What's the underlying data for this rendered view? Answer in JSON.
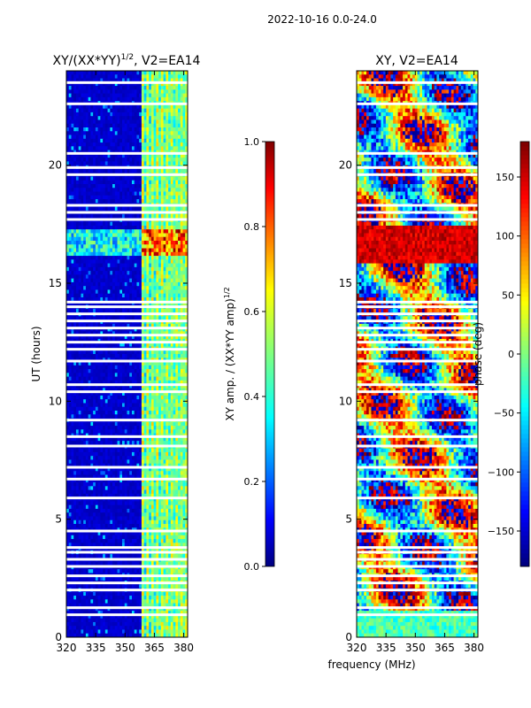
{
  "suptitle": "2022-10-16 0.0-24.0",
  "xlabel_shared": "frequency (MHz)",
  "chart_data": [
    {
      "type": "heatmap",
      "title_prefix": "XY/(XX*YY)",
      "title_sup": "1/2",
      "title_suffix": ", V2=EA14",
      "ylabel": "UT (hours)",
      "xlim": [
        320,
        382
      ],
      "ylim": [
        0,
        24
      ],
      "x_ticks": [
        320,
        335,
        350,
        365,
        380
      ],
      "y_ticks": [
        0,
        5,
        10,
        15,
        20
      ],
      "colormap": "jet",
      "colorbar": {
        "label_prefix": "XY amp. / (XX*YY amp)",
        "label_sup": "1/2",
        "range": [
          0.0,
          1.0
        ],
        "ticks": [
          "0.0",
          "0.2",
          "0.4",
          "0.6",
          "0.8",
          "1.0"
        ]
      }
    },
    {
      "type": "heatmap",
      "title": "XY, V2=EA14",
      "xlim": [
        320,
        382
      ],
      "ylim": [
        0,
        24
      ],
      "x_ticks": [
        320,
        335,
        350,
        365,
        380
      ],
      "y_ticks": [
        0,
        5,
        10,
        15,
        20
      ],
      "colormap": "hsv-like",
      "colorbar": {
        "label": "phase (deg)",
        "range": [
          -180,
          180
        ],
        "ticks": [
          "−150",
          "−100",
          "−50",
          "0",
          "50",
          "100",
          "150"
        ]
      }
    }
  ],
  "gaps_hours": [
    0.95,
    1.25,
    2.0,
    2.3,
    2.6,
    3.0,
    3.3,
    3.6,
    3.8,
    4.5,
    5.9,
    6.7,
    7.2,
    8.1,
    8.5,
    9.2,
    10.4,
    10.7,
    11.7,
    12.2,
    12.5,
    12.8,
    13.1,
    13.4,
    13.7,
    14.0,
    14.2,
    17.7,
    18.0,
    18.3,
    19.6,
    19.9,
    20.5,
    22.6,
    23.5
  ]
}
